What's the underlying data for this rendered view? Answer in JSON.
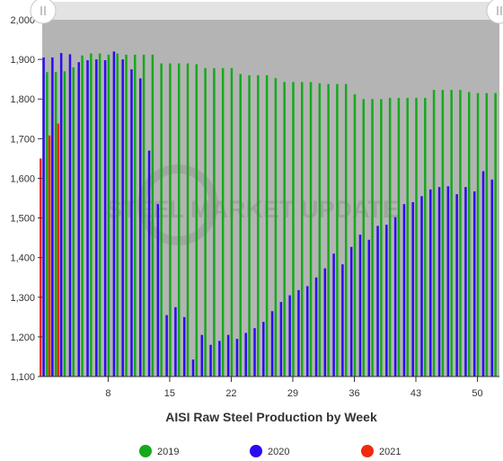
{
  "chart_data": {
    "type": "bar",
    "xlabel": "AISI Raw Steel Production by Week",
    "ylabel": "",
    "ylim": [
      1100,
      2000
    ],
    "xlim": [
      0.5,
      52.5
    ],
    "yticks": [
      "1,100",
      "1,200",
      "1,300",
      "1,400",
      "1,500",
      "1,600",
      "1,700",
      "1,800",
      "1,900",
      "2,000"
    ],
    "xticks": [
      "8",
      "15",
      "22",
      "29",
      "36",
      "43",
      "50"
    ],
    "grid": false,
    "legend_position": "bottom",
    "plot_background": "#b4b4b4",
    "watermark": "STEEL MARKET UPDATE",
    "series": [
      {
        "name": "2019",
        "color": "#16a91c",
        "x": [
          1,
          2,
          3,
          4,
          5,
          6,
          7,
          8,
          9,
          10,
          11,
          12,
          13,
          14,
          15,
          16,
          17,
          18,
          19,
          20,
          21,
          22,
          23,
          24,
          25,
          26,
          27,
          28,
          29,
          30,
          31,
          32,
          33,
          34,
          35,
          36,
          37,
          38,
          39,
          40,
          41,
          42,
          43,
          44,
          45,
          46,
          47,
          48,
          49,
          50,
          51,
          52
        ],
        "values": [
          1868,
          1868,
          1870,
          1880,
          1910,
          1915,
          1915,
          1912,
          1915,
          1912,
          1912,
          1912,
          1912,
          1890,
          1890,
          1890,
          1890,
          1888,
          1878,
          1878,
          1878,
          1878,
          1863,
          1860,
          1860,
          1860,
          1853,
          1843,
          1843,
          1843,
          1843,
          1840,
          1838,
          1838,
          1838,
          1812,
          1800,
          1800,
          1800,
          1803,
          1803,
          1803,
          1803,
          1803,
          1823,
          1823,
          1823,
          1823,
          1818,
          1815,
          1815,
          1815
        ]
      },
      {
        "name": "2020",
        "color": "#2a0cf0",
        "x": [
          1,
          2,
          3,
          4,
          5,
          6,
          7,
          8,
          9,
          10,
          11,
          12,
          13,
          14,
          15,
          16,
          17,
          18,
          19,
          20,
          21,
          22,
          23,
          24,
          25,
          26,
          27,
          28,
          29,
          30,
          31,
          32,
          33,
          34,
          35,
          36,
          37,
          38,
          39,
          40,
          41,
          42,
          43,
          44,
          45,
          46,
          47,
          48,
          49,
          50,
          51,
          52
        ],
        "values": [
          1905,
          1905,
          1916,
          1913,
          1893,
          1898,
          1900,
          1898,
          1920,
          1900,
          1875,
          1852,
          1670,
          1535,
          1255,
          1275,
          1250,
          1143,
          1205,
          1180,
          1190,
          1205,
          1195,
          1210,
          1222,
          1238,
          1265,
          1288,
          1305,
          1318,
          1328,
          1350,
          1373,
          1410,
          1383,
          1427,
          1458,
          1445,
          1480,
          1483,
          1502,
          1535,
          1540,
          1555,
          1572,
          1578,
          1580,
          1560,
          1578,
          1567,
          1618,
          1597
        ]
      },
      {
        "name": "2021",
        "color": "#f02a0c",
        "x": [
          1,
          2,
          3
        ],
        "values": [
          1650,
          1708,
          1738
        ]
      }
    ]
  }
}
